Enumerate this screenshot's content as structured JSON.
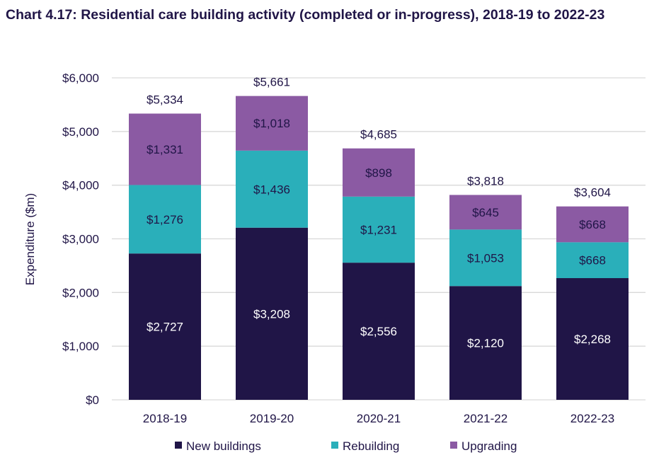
{
  "chart_data": {
    "type": "bar",
    "stacked": true,
    "title": "Chart 4.17: Residential care building activity (completed or in-progress), 2018-19 to 2022-23",
    "xlabel": "",
    "ylabel": "Expenditure ($m)",
    "ylim": [
      0,
      6000
    ],
    "yticks": [
      0,
      1000,
      2000,
      3000,
      4000,
      5000,
      6000
    ],
    "ytick_labels": [
      "$0",
      "$1,000",
      "$2,000",
      "$3,000",
      "$4,000",
      "$5,000",
      "$6,000"
    ],
    "grid": true,
    "legend_position": "bottom",
    "categories": [
      "2018-19",
      "2019-20",
      "2020-21",
      "2021-22",
      "2022-23"
    ],
    "series": [
      {
        "name": "New buildings",
        "color": "#201547",
        "label_color": "#ffffff",
        "values": [
          2727,
          3208,
          2556,
          2120,
          2268
        ],
        "labels": [
          "$2,727",
          "$3,208",
          "$2,556",
          "$2,120",
          "$2,268"
        ]
      },
      {
        "name": "Rebuilding",
        "color": "#2AAFBA",
        "label_color": "#201547",
        "values": [
          1276,
          1436,
          1231,
          1053,
          668
        ],
        "labels": [
          "$1,276",
          "$1,436",
          "$1,231",
          "$1,053",
          "$668"
        ]
      },
      {
        "name": "Upgrading",
        "color": "#8B5AA3",
        "label_color": "#201547",
        "values": [
          1331,
          1018,
          898,
          645,
          668
        ],
        "labels": [
          "$1,331",
          "$1,018",
          "$898",
          "$645",
          "$668"
        ]
      }
    ],
    "totals": [
      5334,
      5661,
      4685,
      3818,
      3604
    ],
    "total_labels": [
      "$5,334",
      "$5,661",
      "$4,685",
      "$3,818",
      "$3,604"
    ]
  }
}
